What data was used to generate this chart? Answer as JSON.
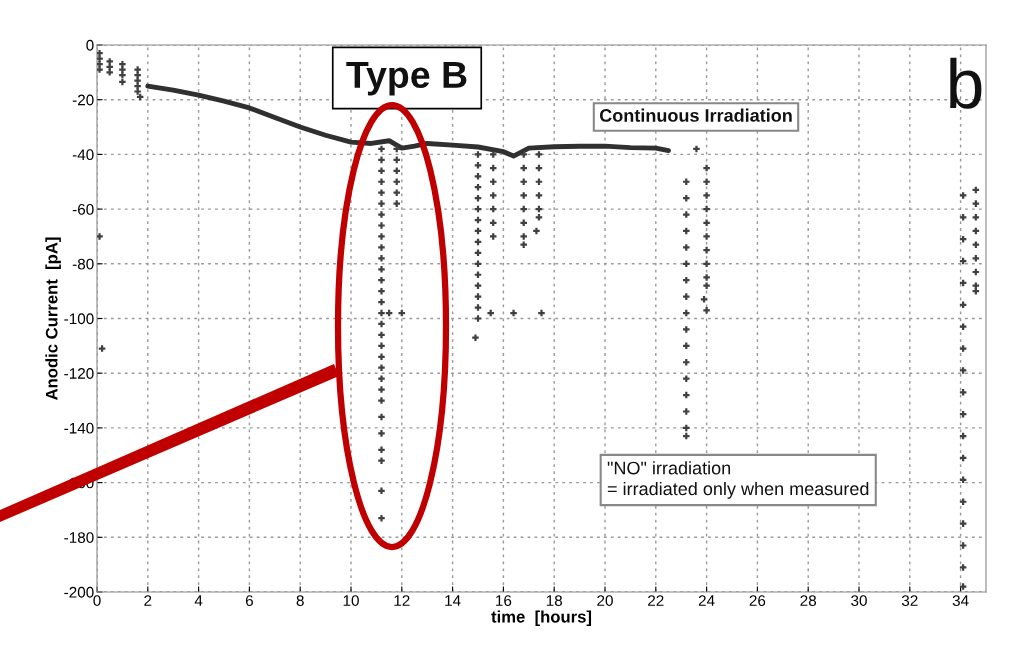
{
  "chart_data": {
    "type": "scatter",
    "xlabel": "time  [hours]",
    "ylabel": "Anodic Current  [pA]",
    "xlim": [
      0,
      35
    ],
    "ylim": [
      -200,
      0
    ],
    "xticks": [
      0,
      2,
      4,
      6,
      8,
      10,
      12,
      14,
      16,
      18,
      20,
      22,
      24,
      26,
      28,
      30,
      32,
      34
    ],
    "yticks": [
      -200,
      -180,
      -160,
      -140,
      -120,
      -100,
      -80,
      -60,
      -40,
      -20,
      0
    ],
    "grid": true,
    "annotations": [
      "Type B",
      "b",
      "Continuous Irradiation",
      "\"NO\" irradiation\n= irradiated only when measured"
    ],
    "series": [
      {
        "type": "line",
        "color": "#303030",
        "x": [
          2,
          3,
          4,
          5,
          6,
          7,
          8,
          9,
          10,
          10.8,
          11.5,
          12,
          12.5,
          13,
          14,
          15,
          16,
          16.4,
          17,
          18,
          19,
          20,
          21,
          22,
          22.5
        ],
        "values": [
          -15,
          -16.5,
          -18.3,
          -20.5,
          -23,
          -26.5,
          -30,
          -33,
          -35.5,
          -36,
          -35,
          -37.7,
          -37,
          -36,
          -36.6,
          -37.3,
          -39,
          -40.6,
          -37.7,
          -37.2,
          -37,
          -37,
          -37.5,
          -37.7,
          -38.6
        ]
      },
      {
        "color": "#404040",
        "marker": "cross",
        "x": [
          0.1,
          0.1,
          0.1,
          0.1,
          0.1,
          0.2,
          0.5,
          0.5,
          0.5,
          1.0,
          1.0,
          1.0,
          1.0,
          1.6,
          1.6,
          1.6,
          1.6,
          1.6,
          1.7,
          11.2,
          11.2,
          11.2,
          11.2,
          11.2,
          11.2,
          11.2,
          11.2,
          11.2,
          11.2,
          11.2,
          11.2,
          11.2,
          11.2,
          11.2,
          11.2,
          11.2,
          11.2,
          11.2,
          11.2,
          11.2,
          11.2,
          11.2,
          11.2,
          11.2,
          11.2,
          11.2,
          11.2,
          11.2,
          11.2,
          11.8,
          11.8,
          11.8,
          11.8,
          11.8,
          11.8,
          11.5,
          12.0,
          15.0,
          15.0,
          15.0,
          15.0,
          15.0,
          15.0,
          15.0,
          15.0,
          15.0,
          15.0,
          15.0,
          15.0,
          15.0,
          15.0,
          15.0,
          15.0,
          14.9,
          15.6,
          15.6,
          15.6,
          15.6,
          15.6,
          15.6,
          15.6,
          15.5,
          16.4,
          17.5,
          16.8,
          16.8,
          16.8,
          16.8,
          16.8,
          16.8,
          16.8,
          16.8,
          17.4,
          17.4,
          17.4,
          17.4,
          17.4,
          17.4,
          17.3,
          23.2,
          23.2,
          23.2,
          23.2,
          23.2,
          23.2,
          23.2,
          23.2,
          23.2,
          23.2,
          23.2,
          23.2,
          23.2,
          23.2,
          23.2,
          23.2,
          23.2,
          23.6,
          24.0,
          24.0,
          24.0,
          24.0,
          24.0,
          24.0,
          24.0,
          24.0,
          24.0,
          24.0,
          23.9,
          24.0,
          34.1,
          34.1,
          34.1,
          34.1,
          34.1,
          34.1,
          34.1,
          34.1,
          34.1,
          34.1,
          34.1,
          34.1,
          34.1,
          34.1,
          34.1,
          34.1,
          34.1,
          34.1,
          34.1,
          34.6,
          34.6,
          34.6,
          34.6,
          34.6,
          34.6,
          34.6,
          34.6,
          34.6
        ],
        "values": [
          -3,
          -5,
          -7,
          -9,
          -70,
          -111,
          -6,
          -8,
          -10,
          -7,
          -9,
          -11,
          -13.5,
          -9,
          -11,
          -13,
          -15,
          -17,
          -19,
          -38,
          -42,
          -46,
          -50,
          -54,
          -58,
          -62,
          -66,
          -70,
          -74,
          -78,
          -82,
          -86,
          -90,
          -94,
          -98,
          -102,
          -106,
          -110,
          -114,
          -118,
          -122,
          -126,
          -130,
          -136,
          -142,
          -148,
          -152,
          -163,
          -173,
          -38,
          -42,
          -46,
          -50,
          -54,
          -58,
          -98,
          -98,
          -40,
          -44,
          -48,
          -52,
          -56,
          -60,
          -64,
          -68,
          -72,
          -76,
          -80,
          -84,
          -88,
          -92,
          -96,
          -100,
          -107,
          -40,
          -45,
          -50,
          -55,
          -60,
          -65,
          -70,
          -98,
          -98,
          -98,
          -40,
          -45,
          -50,
          -55,
          -60,
          -65,
          -70,
          -73,
          -40,
          -45,
          -50,
          -55,
          -60,
          -63,
          -68,
          -50,
          -56,
          -62,
          -68,
          -74,
          -80,
          -86,
          -92,
          -98,
          -104,
          -110,
          -116,
          -122,
          -128,
          -134,
          -140,
          -143,
          -38,
          -45,
          -50,
          -55,
          -60,
          -65,
          -70,
          -75,
          -80,
          -85,
          -88,
          -93,
          -97,
          -55,
          -63,
          -71,
          -79,
          -87,
          -95,
          -103,
          -111,
          -119,
          -127,
          -135,
          -143,
          -151,
          -159,
          -167,
          -175,
          -183,
          -191,
          -198,
          -53,
          -58,
          -63,
          -68,
          -73,
          -78,
          -83,
          -88,
          -90
        ]
      }
    ]
  }
}
